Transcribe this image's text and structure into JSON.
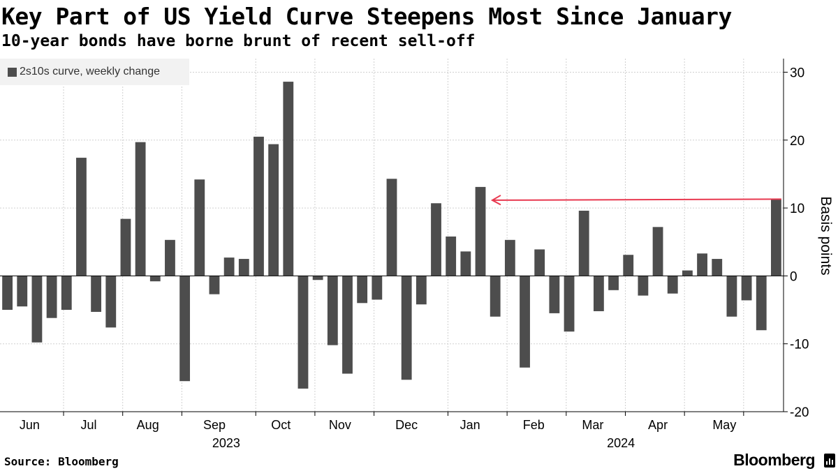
{
  "header": {
    "title": "Key Part of US Yield Curve Steepens Most Since January",
    "subtitle": "10-year bonds have borne brunt of recent sell-off"
  },
  "legend": {
    "label": "2s10s curve, weekly change"
  },
  "footer": {
    "source": "Source: Bloomberg",
    "brand": "Bloomberg"
  },
  "colors": {
    "bar": "#4d4d4d",
    "arrow": "#e8384f",
    "grid": "#d0d0d0",
    "axis": "#000000"
  },
  "chart_data": {
    "type": "bar",
    "title": "Key Part of US Yield Curve Steepens Most Since January",
    "subtitle": "10-year bonds have borne brunt of recent sell-off",
    "ylabel": "Basis points",
    "xlabel": "",
    "ylim": [
      -20,
      32
    ],
    "yticks": [
      -20,
      -10,
      0,
      10,
      20,
      30
    ],
    "grid": true,
    "legend_position": "top-left",
    "series": [
      {
        "name": "2s10s curve, weekly change",
        "values": [
          -5,
          -4.5,
          -9.8,
          -6.2,
          -5,
          17.4,
          -5.3,
          -7.6,
          8.4,
          19.7,
          -0.8,
          5.3,
          -15.5,
          14.2,
          -2.7,
          2.7,
          2.5,
          20.5,
          19.4,
          28.6,
          -16.6,
          -0.6,
          -10.2,
          -14.4,
          -4,
          -3.5,
          14.3,
          -15.3,
          -4.2,
          10.7,
          5.8,
          3.6,
          13.1,
          -6,
          5.3,
          -13.5,
          3.9,
          -5.5,
          -8.2,
          9.6,
          -5.2,
          -2.1,
          3.1,
          -2.9,
          7.2,
          -2.6,
          0.8,
          3.3,
          2.5,
          -6,
          -3.6,
          -8,
          11.3
        ]
      }
    ],
    "month_labels": [
      {
        "label": "Jun",
        "week": 1.5
      },
      {
        "label": "Jul",
        "week": 5.5
      },
      {
        "label": "Aug",
        "week": 9.5
      },
      {
        "label": "Sep",
        "week": 14
      },
      {
        "label": "Oct",
        "week": 18.5
      },
      {
        "label": "Nov",
        "week": 22.5
      },
      {
        "label": "Dec",
        "week": 27
      },
      {
        "label": "Jan",
        "week": 31.3
      },
      {
        "label": "Feb",
        "week": 35.6
      },
      {
        "label": "Mar",
        "week": 39.6
      },
      {
        "label": "Apr",
        "week": 44
      },
      {
        "label": "May",
        "week": 48.5
      }
    ],
    "month_boundaries": [
      4.3,
      8.3,
      12.3,
      17.3,
      21.3,
      25.3,
      30.3,
      34.3,
      38.3,
      42.3,
      46.3,
      50.3
    ],
    "year_labels": [
      {
        "label": "2023",
        "week": 14.8
      },
      {
        "label": "2024",
        "week": 41.5
      }
    ],
    "annotation": {
      "type": "arrow",
      "from_week": 52,
      "to_week": 32.8,
      "value": 11.3,
      "meaning": "Latest weekly change compared with largest since January"
    }
  }
}
